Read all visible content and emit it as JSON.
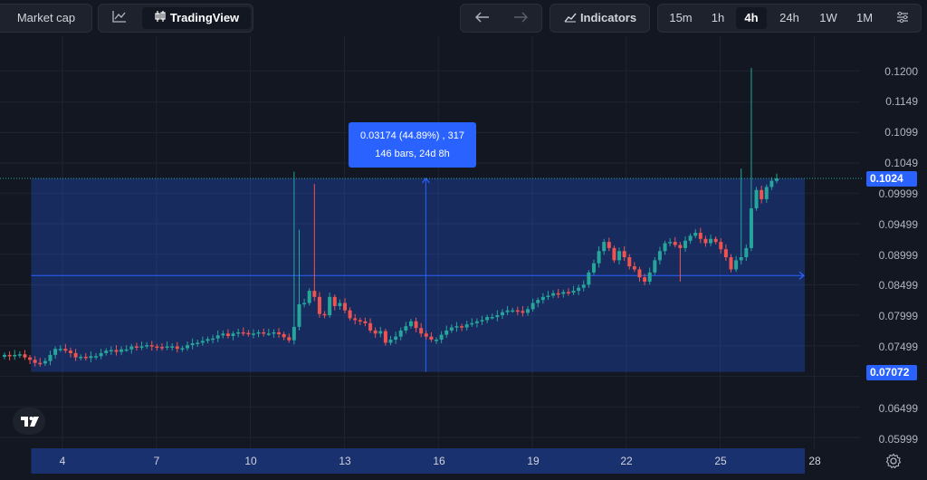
{
  "toolbar": {
    "market_cap_label": "Market cap",
    "tradingview_label": "TradingView",
    "indicators_label": "Indicators",
    "timeframes": [
      "15m",
      "1h",
      "4h",
      "24h",
      "1W",
      "1M"
    ],
    "active_timeframe": "4h"
  },
  "measure": {
    "line1": "0.03174 (44.89%) , 317",
    "line2": "146 bars, 24d 8h"
  },
  "price_axis": {
    "labels": [
      "0.1200",
      "0.1149",
      "0.1099",
      "0.1049",
      "0.09999",
      "0.09499",
      "0.08999",
      "0.08499",
      "0.07999",
      "0.07499",
      "0.06499",
      "0.05999"
    ],
    "current_price": "0.1024",
    "range_low_price": "0.07072"
  },
  "time_axis": {
    "labels": [
      "4",
      "7",
      "10",
      "13",
      "16",
      "19",
      "22",
      "25",
      "28"
    ]
  },
  "chart_data": {
    "type": "candlestick",
    "range_box": {
      "from_day": 3.0,
      "to_day": 27.7,
      "low": 0.07072,
      "high": 0.1024,
      "mid_line": 0.0865
    },
    "current_price": 0.1024,
    "up_color": "#26a69a",
    "down_color": "#ef5350",
    "selection_color": "#2962ff",
    "candles_approx_close": [
      0.0735,
      0.0733,
      0.0735,
      0.0736,
      0.0731,
      0.0727,
      0.0722,
      0.0721,
      0.0725,
      0.0735,
      0.0745,
      0.0745,
      0.0742,
      0.0738,
      0.0731,
      0.0732,
      0.073,
      0.0733,
      0.0733,
      0.0738,
      0.0742,
      0.0743,
      0.074,
      0.0744,
      0.0744,
      0.0749,
      0.0748,
      0.0749,
      0.0751,
      0.0749,
      0.0748,
      0.0747,
      0.0749,
      0.0749,
      0.0745,
      0.0746,
      0.0751,
      0.0754,
      0.0755,
      0.0758,
      0.0761,
      0.0762,
      0.0767,
      0.077,
      0.0766,
      0.077,
      0.0772,
      0.0771,
      0.0769,
      0.077,
      0.0772,
      0.077,
      0.077,
      0.0772,
      0.0769,
      0.0764,
      0.0759,
      0.0781,
      0.0818,
      0.082,
      0.084,
      0.083,
      0.0802,
      0.08,
      0.083,
      0.0815,
      0.082,
      0.0808,
      0.0795,
      0.0792,
      0.079,
      0.0787,
      0.0775,
      0.077,
      0.0774,
      0.0755,
      0.076,
      0.0765,
      0.0775,
      0.0782,
      0.079,
      0.0779,
      0.077,
      0.0765,
      0.076,
      0.076,
      0.0768,
      0.0775,
      0.078,
      0.0782,
      0.078,
      0.0785,
      0.0787,
      0.079,
      0.0792,
      0.0797,
      0.0797,
      0.08,
      0.0805,
      0.0808,
      0.0808,
      0.0807,
      0.0804,
      0.081,
      0.082,
      0.0825,
      0.083,
      0.0832,
      0.0836,
      0.0835,
      0.0838,
      0.0837,
      0.084,
      0.0845,
      0.085,
      0.087,
      0.0885,
      0.0905,
      0.092,
      0.091,
      0.089,
      0.0905,
      0.0895,
      0.088,
      0.0875,
      0.0862,
      0.0855,
      0.087,
      0.089,
      0.0905,
      0.0918,
      0.092,
      0.0915,
      0.091,
      0.0922,
      0.093,
      0.0935,
      0.0925,
      0.0918,
      0.0925,
      0.092,
      0.0908,
      0.0895,
      0.0875,
      0.089,
      0.0895,
      0.091,
      0.0975,
      0.1005,
      0.099,
      0.101,
      0.102,
      0.1024
    ]
  }
}
